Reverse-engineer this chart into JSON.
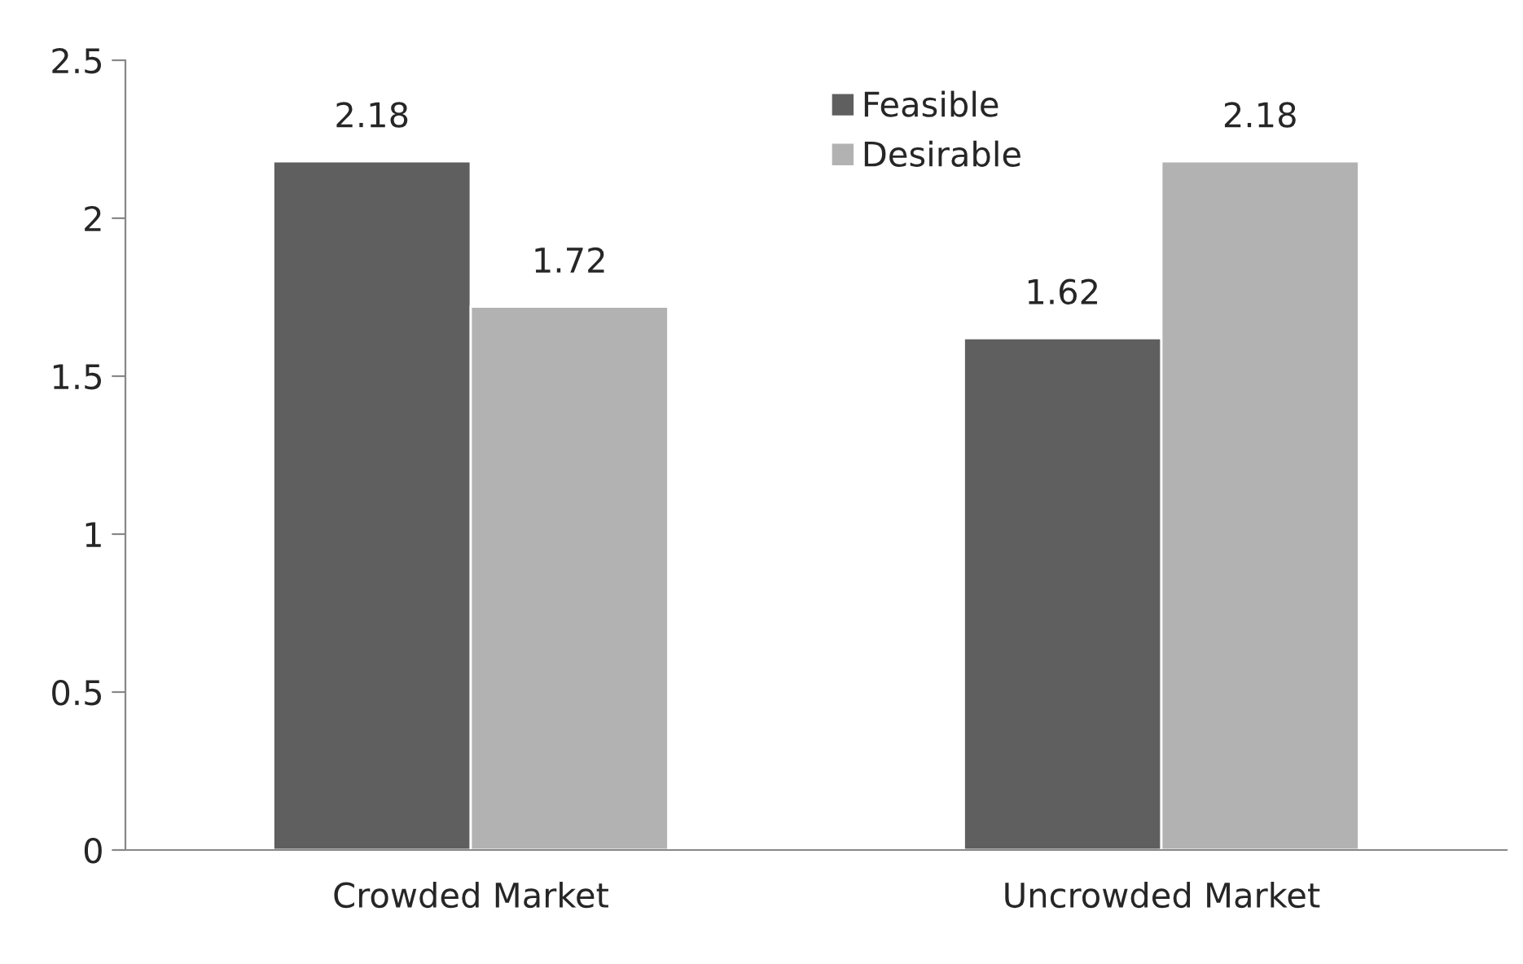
{
  "chart_data": {
    "type": "bar",
    "categories": [
      "Crowded Market",
      "Uncrowded Market"
    ],
    "series": [
      {
        "name": "Feasible",
        "color": "#5f5f5f",
        "values": [
          2.18,
          1.62
        ]
      },
      {
        "name": "Desirable",
        "color": "#b2b2b2",
        "values": [
          1.72,
          2.18
        ]
      }
    ],
    "ylim": [
      0,
      2.5
    ],
    "yticks": [
      0,
      0.5,
      1,
      1.5,
      2,
      2.5
    ],
    "grid": false,
    "legend": "top",
    "data_labels": true
  }
}
